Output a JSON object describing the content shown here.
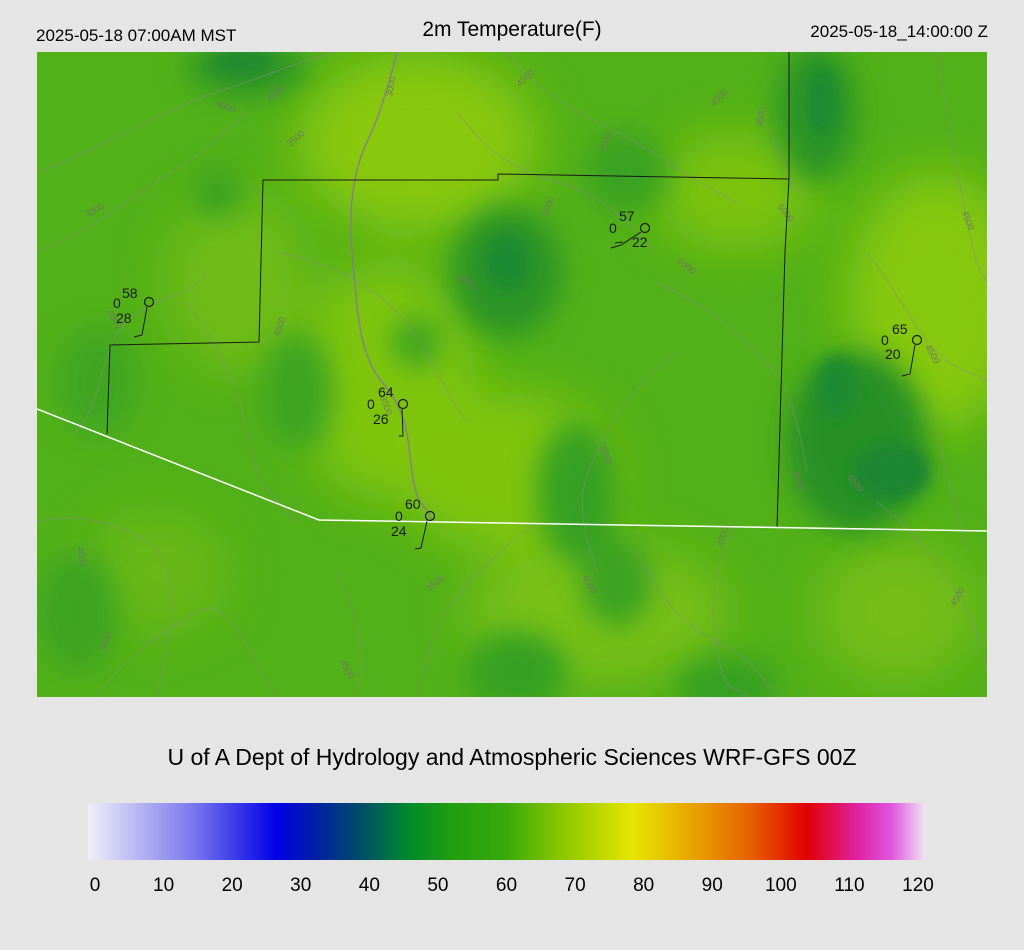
{
  "header": {
    "local_time": "2025-05-18 07:00AM MST",
    "title": "2m Temperature(F)",
    "utc_time": "2025-05-18_14:00:00 Z"
  },
  "credit": "U of A Dept of Hydrology and Atmospheric Sciences WRF-GFS 00Z",
  "colors": {
    "background": "#e5e5e5",
    "field_light": "#7ec40e",
    "field_mid": "#48ae1c",
    "field_dark": "#1f8a2e",
    "boundary": "#1a1a1a",
    "state_line": "#ffffff",
    "contour": "#8a8a8a"
  },
  "colorbar": {
    "ticks": [
      "0",
      "10",
      "20",
      "30",
      "40",
      "50",
      "60",
      "70",
      "80",
      "90",
      "100",
      "110",
      "120"
    ],
    "min": 0,
    "max": 120,
    "stops": [
      {
        "value": 0,
        "color": "#f0eef6"
      },
      {
        "value": 15,
        "color": "#7a78ec"
      },
      {
        "value": 27,
        "color": "#0000e6"
      },
      {
        "value": 33,
        "color": "#0022a0"
      },
      {
        "value": 40,
        "color": "#00555e"
      },
      {
        "value": 46,
        "color": "#008a2c"
      },
      {
        "value": 52,
        "color": "#1f9e10"
      },
      {
        "value": 60,
        "color": "#3aaa0a"
      },
      {
        "value": 68,
        "color": "#8cc800"
      },
      {
        "value": 78,
        "color": "#e6e600"
      },
      {
        "value": 86,
        "color": "#e8a800"
      },
      {
        "value": 95,
        "color": "#e66000"
      },
      {
        "value": 103,
        "color": "#e00000"
      },
      {
        "value": 110,
        "color": "#e020a0"
      },
      {
        "value": 115,
        "color": "#dd55dd"
      },
      {
        "value": 120,
        "color": "#f0e6f0"
      }
    ]
  },
  "stations": [
    {
      "temp": "58",
      "wx": "0",
      "dew": "28"
    },
    {
      "temp": "57",
      "wx": "0",
      "dew": "22"
    },
    {
      "temp": "65",
      "wx": "0",
      "dew": "20"
    },
    {
      "temp": "64",
      "wx": "0",
      "dew": "26"
    },
    {
      "temp": "60",
      "wx": "0",
      "dew": "24"
    }
  ],
  "contour_labels": [
    "4000",
    "3000",
    "4000",
    "4500",
    "3500",
    "4500",
    "3500",
    "4500",
    "4000",
    "3500",
    "4500",
    "5000",
    "5000",
    "4500",
    "4000",
    "4500",
    "4500",
    "3500",
    "5000",
    "4500",
    "4000",
    "4000",
    "3500",
    "4500",
    "4000",
    "4500",
    "3500",
    "4500"
  ]
}
